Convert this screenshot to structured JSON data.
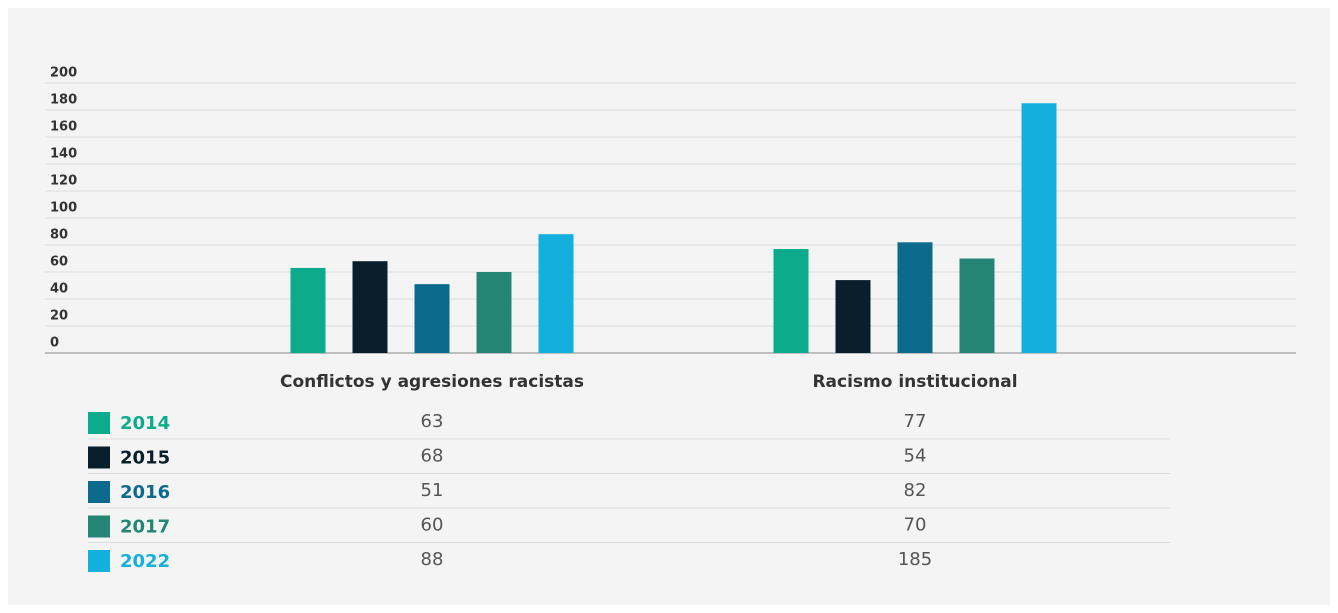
{
  "chart_data": {
    "type": "bar",
    "categories": [
      "Conflictos y agresiones racistas",
      "Racismo institucional"
    ],
    "series": [
      {
        "name": "2014",
        "color": "#0bab8c",
        "values": [
          63,
          77
        ]
      },
      {
        "name": "2015",
        "color": "#0a1f2c",
        "values": [
          68,
          54
        ]
      },
      {
        "name": "2016",
        "color": "#0c6a8c",
        "values": [
          51,
          82
        ]
      },
      {
        "name": "2017",
        "color": "#248574",
        "values": [
          60,
          70
        ]
      },
      {
        "name": "2022",
        "color": "#14b0dd",
        "values": [
          88,
          185
        ]
      }
    ],
    "ylim": [
      0,
      200
    ],
    "yticks": [
      0,
      20,
      40,
      60,
      80,
      100,
      120,
      140,
      160,
      180,
      200
    ],
    "grid": true
  }
}
